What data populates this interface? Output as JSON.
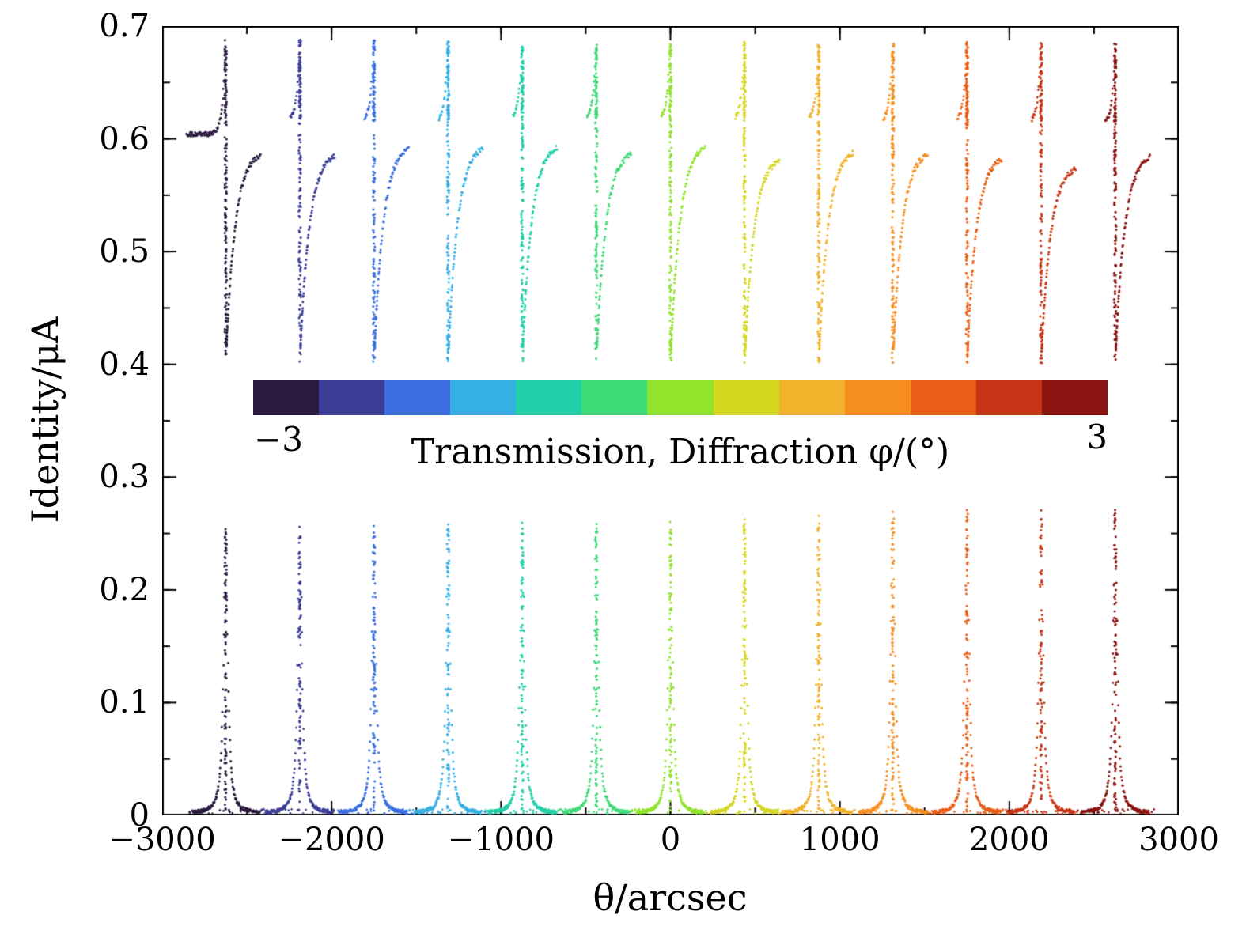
{
  "figure": {
    "background": "#ffffff",
    "axis_color": "#000000"
  },
  "chart_data": {
    "type": "scatter",
    "title": "",
    "xlabel": "θ/arcsec",
    "ylabel": "Identity/μA",
    "xlim": [
      -3000,
      3000
    ],
    "ylim": [
      0,
      0.7
    ],
    "xticks": [
      -3000,
      -2000,
      -1000,
      0,
      1000,
      2000,
      3000
    ],
    "xtick_labels": [
      "−3000",
      "−2000",
      "−1000",
      "0",
      "1000",
      "2000",
      "3000"
    ],
    "yticks": [
      0,
      0.1,
      0.2,
      0.3,
      0.4,
      0.5,
      0.6,
      0.7
    ],
    "ytick_labels": [
      "0",
      "0.1",
      "0.2",
      "0.3",
      "0.4",
      "0.5",
      "0.6",
      "0.7"
    ],
    "x_minor_step": 500,
    "y_minor_step": 0.05,
    "grid": false,
    "legend": false,
    "colorbar": {
      "label": "Transmission, Diffraction φ/(°)",
      "min": -3,
      "max": 3,
      "min_label": "−3",
      "max_label": "3",
      "orientation": "horizontal",
      "colors": [
        "#2a1a3e",
        "#3c3e96",
        "#3a6ede",
        "#36afe4",
        "#21cfa9",
        "#3eda78",
        "#90e42c",
        "#d5d620",
        "#f2b22b",
        "#f68e1e",
        "#e95e17",
        "#c53516",
        "#8c1410"
      ]
    },
    "series": [
      {
        "phi": -3.0,
        "x": -2625.0,
        "color": "#2a1a3e",
        "diff_peak": 0.253,
        "trans_top": 0.688,
        "trans_bottom": 0.402,
        "trans_tail": 0.59,
        "trans_base": 0.604,
        "left_extent": 230
      },
      {
        "phi": -2.5,
        "x": -2187.5,
        "color": "#3c3e96",
        "diff_peak": 0.254,
        "trans_top": 0.688,
        "trans_bottom": 0.402,
        "trans_tail": 0.589,
        "trans_base": 0.615,
        "left_extent": 55
      },
      {
        "phi": -2.0,
        "x": -1750.0,
        "color": "#3a6ede",
        "diff_peak": 0.256,
        "trans_top": 0.688,
        "trans_bottom": 0.402,
        "trans_tail": 0.596,
        "trans_base": 0.615,
        "left_extent": 55
      },
      {
        "phi": -1.5,
        "x": -1312.5,
        "color": "#36afe4",
        "diff_peak": 0.256,
        "trans_top": 0.687,
        "trans_bottom": 0.402,
        "trans_tail": 0.596,
        "trans_base": 0.615,
        "left_extent": 55
      },
      {
        "phi": -1.0,
        "x": -875.0,
        "color": "#21cfa9",
        "diff_peak": 0.257,
        "trans_top": 0.686,
        "trans_bottom": 0.402,
        "trans_tail": 0.597,
        "trans_base": 0.617,
        "left_extent": 55
      },
      {
        "phi": -0.5,
        "x": -437.5,
        "color": "#3eda78",
        "diff_peak": 0.258,
        "trans_top": 0.686,
        "trans_bottom": 0.402,
        "trans_tail": 0.591,
        "trans_base": 0.617,
        "left_extent": 55
      },
      {
        "phi": 0.0,
        "x": 0.0,
        "color": "#90e42c",
        "diff_peak": 0.258,
        "trans_top": 0.687,
        "trans_bottom": 0.401,
        "trans_tail": 0.597,
        "trans_base": 0.617,
        "left_extent": 55
      },
      {
        "phi": 0.5,
        "x": 437.5,
        "color": "#d5d620",
        "diff_peak": 0.262,
        "trans_top": 0.686,
        "trans_bottom": 0.401,
        "trans_tail": 0.585,
        "trans_base": 0.616,
        "left_extent": 55
      },
      {
        "phi": 1.0,
        "x": 875.0,
        "color": "#f2b22b",
        "diff_peak": 0.264,
        "trans_top": 0.684,
        "trans_bottom": 0.401,
        "trans_tail": 0.592,
        "trans_base": 0.616,
        "left_extent": 55
      },
      {
        "phi": 1.5,
        "x": 1312.5,
        "color": "#f68e1e",
        "diff_peak": 0.268,
        "trans_top": 0.686,
        "trans_bottom": 0.401,
        "trans_tail": 0.591,
        "trans_base": 0.615,
        "left_extent": 55
      },
      {
        "phi": 2.0,
        "x": 1750.0,
        "color": "#e95e17",
        "diff_peak": 0.27,
        "trans_top": 0.687,
        "trans_bottom": 0.401,
        "trans_tail": 0.586,
        "trans_base": 0.615,
        "left_extent": 55
      },
      {
        "phi": 2.5,
        "x": 2187.5,
        "color": "#c53516",
        "diff_peak": 0.27,
        "trans_top": 0.686,
        "trans_bottom": 0.401,
        "trans_tail": 0.578,
        "trans_base": 0.614,
        "left_extent": 55
      },
      {
        "phi": 3.0,
        "x": 2625.0,
        "color": "#8c1410",
        "diff_peak": 0.27,
        "trans_top": 0.685,
        "trans_bottom": 0.401,
        "trans_tail": 0.588,
        "trans_base": 0.612,
        "left_extent": 60
      }
    ],
    "shape": {
      "rise_tau": 18,
      "vertical_points": 130,
      "vertical_jitter": 12,
      "top_cluster_points": 35,
      "recovery_points": 80,
      "recovery_extent": 210,
      "recovery_tau": 55,
      "peak_points": 150,
      "peak_extent": 200,
      "peak_gamma": 14,
      "peak_vertical_points": 90,
      "base_points": 22,
      "base_extent": 230,
      "dot_radius": 1.5
    }
  }
}
